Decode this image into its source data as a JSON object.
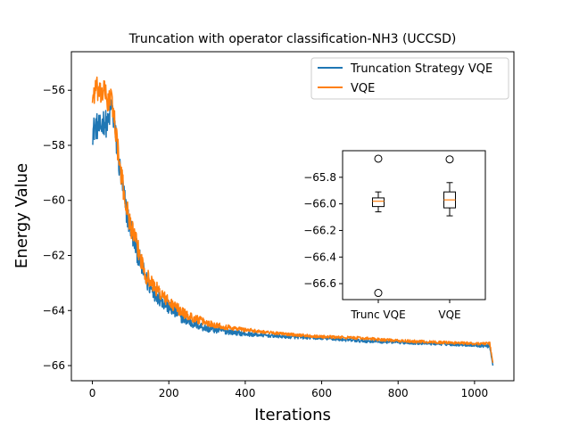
{
  "chart_data": [
    {
      "type": "line",
      "title": "Truncation with operator classification-NH3 (UCCSD)",
      "xlabel": "Iterations",
      "ylabel": "Energy Value",
      "xlim": [
        -55,
        1103
      ],
      "ylim": [
        -66.55,
        -54.6
      ],
      "xticks": [
        0,
        200,
        400,
        600,
        800,
        1000
      ],
      "yticks": [
        -56,
        -58,
        -60,
        -62,
        -64,
        -66
      ],
      "legend": {
        "placement": "top-right",
        "entries": [
          "Truncation Strategy VQE",
          "VQE"
        ]
      },
      "series": [
        {
          "name": "Truncation Strategy VQE",
          "color": "#1f77b4",
          "x": [
            0,
            10,
            20,
            30,
            40,
            50,
            60,
            70,
            80,
            90,
            100,
            120,
            140,
            160,
            180,
            200,
            250,
            300,
            350,
            400,
            500,
            600,
            700,
            800,
            900,
            1000,
            1040,
            1048
          ],
          "y": [
            -57.5,
            -57.3,
            -57.4,
            -57.1,
            -57.3,
            -56.5,
            -57.6,
            -58.7,
            -59.6,
            -60.5,
            -61.0,
            -62.0,
            -62.9,
            -63.3,
            -63.6,
            -63.9,
            -64.4,
            -64.65,
            -64.75,
            -64.85,
            -64.95,
            -65.0,
            -65.1,
            -65.15,
            -65.2,
            -65.25,
            -65.3,
            -66.0
          ]
        },
        {
          "name": "VQE",
          "color": "#ff7f0e",
          "x": [
            0,
            10,
            20,
            30,
            40,
            50,
            60,
            70,
            80,
            90,
            100,
            120,
            140,
            160,
            180,
            200,
            250,
            300,
            350,
            400,
            500,
            600,
            700,
            800,
            900,
            1000,
            1040,
            1048
          ],
          "y": [
            -56.3,
            -55.9,
            -56.2,
            -56.0,
            -56.4,
            -56.3,
            -57.3,
            -58.6,
            -59.5,
            -60.3,
            -60.9,
            -61.8,
            -62.7,
            -63.1,
            -63.4,
            -63.7,
            -64.2,
            -64.45,
            -64.6,
            -64.7,
            -64.85,
            -64.95,
            -65.0,
            -65.1,
            -65.15,
            -65.2,
            -65.2,
            -65.9
          ]
        }
      ],
      "noise_amplitude": {
        "Truncation Strategy VQE": 0.5,
        "VQE": 0.45
      }
    },
    {
      "type": "box",
      "title": "",
      "categories": [
        "Trunc VQE",
        "VQE"
      ],
      "ylim": [
        -66.72,
        -65.6
      ],
      "yticks": [
        -65.8,
        -66.0,
        -66.2,
        -66.4,
        -66.6
      ],
      "boxes": [
        {
          "name": "Trunc VQE",
          "whisker_low": -66.06,
          "q1": -66.02,
          "median": -65.98,
          "q3": -65.955,
          "whisker_high": -65.91,
          "outliers": [
            -65.66,
            -66.67
          ]
        },
        {
          "name": "VQE",
          "whisker_low": -66.09,
          "q1": -66.03,
          "median": -65.97,
          "q3": -65.91,
          "whisker_high": -65.84,
          "outliers": [
            -65.665
          ]
        }
      ],
      "box_color": "#000000",
      "median_color": "#ff7f0e"
    }
  ]
}
